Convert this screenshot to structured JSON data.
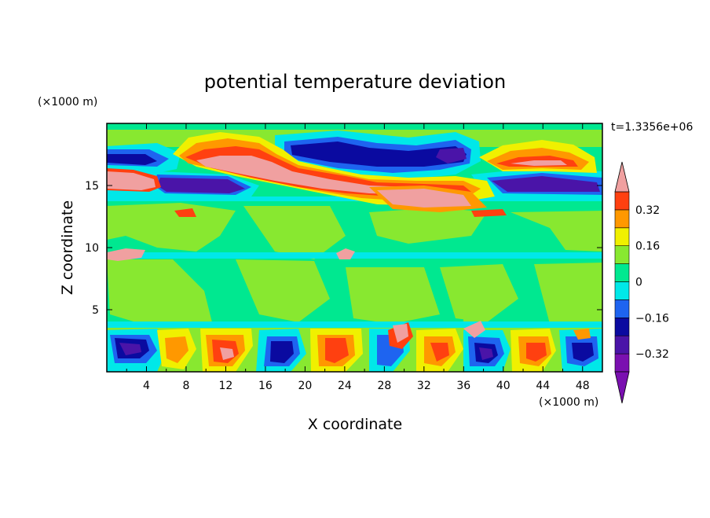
{
  "chart_data": {
    "type": "heatmap",
    "title": "potential temperature deviation",
    "xlabel": "X coordinate",
    "ylabel": "Z coordinate",
    "x_unit": "(×1000 m)",
    "y_unit": "(×1000 m)",
    "time_label": "t=1.3356e+06",
    "xlim": [
      0,
      50
    ],
    "ylim": [
      0,
      20
    ],
    "x_ticks": [
      4,
      8,
      12,
      16,
      20,
      24,
      28,
      32,
      36,
      40,
      44,
      48
    ],
    "y_ticks": [
      5,
      10,
      15
    ],
    "colorbar": {
      "levels": [
        -0.4,
        -0.32,
        -0.24,
        -0.16,
        -0.08,
        0,
        0.08,
        0.16,
        0.24,
        0.32,
        0.4
      ],
      "labels": [
        "-0.32",
        "-0.16",
        "0",
        "0.16",
        "0.32"
      ],
      "label_values": [
        -0.32,
        -0.16,
        0,
        0.16,
        0.32
      ],
      "colors": [
        "#7a10b0",
        "#4a14a8",
        "#0a0aa0",
        "#1e64f0",
        "#00e8e8",
        "#00e890",
        "#88e830",
        "#f0f000",
        "#ff9800",
        "#ff4010",
        "#f0a0a0"
      ],
      "extend_min_color": "#7a10b0",
      "extend_max_color": "#f0a0a0"
    },
    "bands": [
      {
        "z_range": [
          0,
          3.6
        ],
        "description": "turbulent boundary layer, mixed strong positive and negative anomalies"
      },
      {
        "z_range": [
          3.6,
          14
        ],
        "description": "near-zero values (greens) with thin cyan lines near z=9.5 and z=13.8"
      },
      {
        "z_range": [
          14,
          18.5
        ],
        "description": "alternating strong positive (pink) and negative (purple) layers"
      },
      {
        "z_range": [
          18.5,
          20
        ],
        "description": "near-zero values"
      }
    ]
  }
}
